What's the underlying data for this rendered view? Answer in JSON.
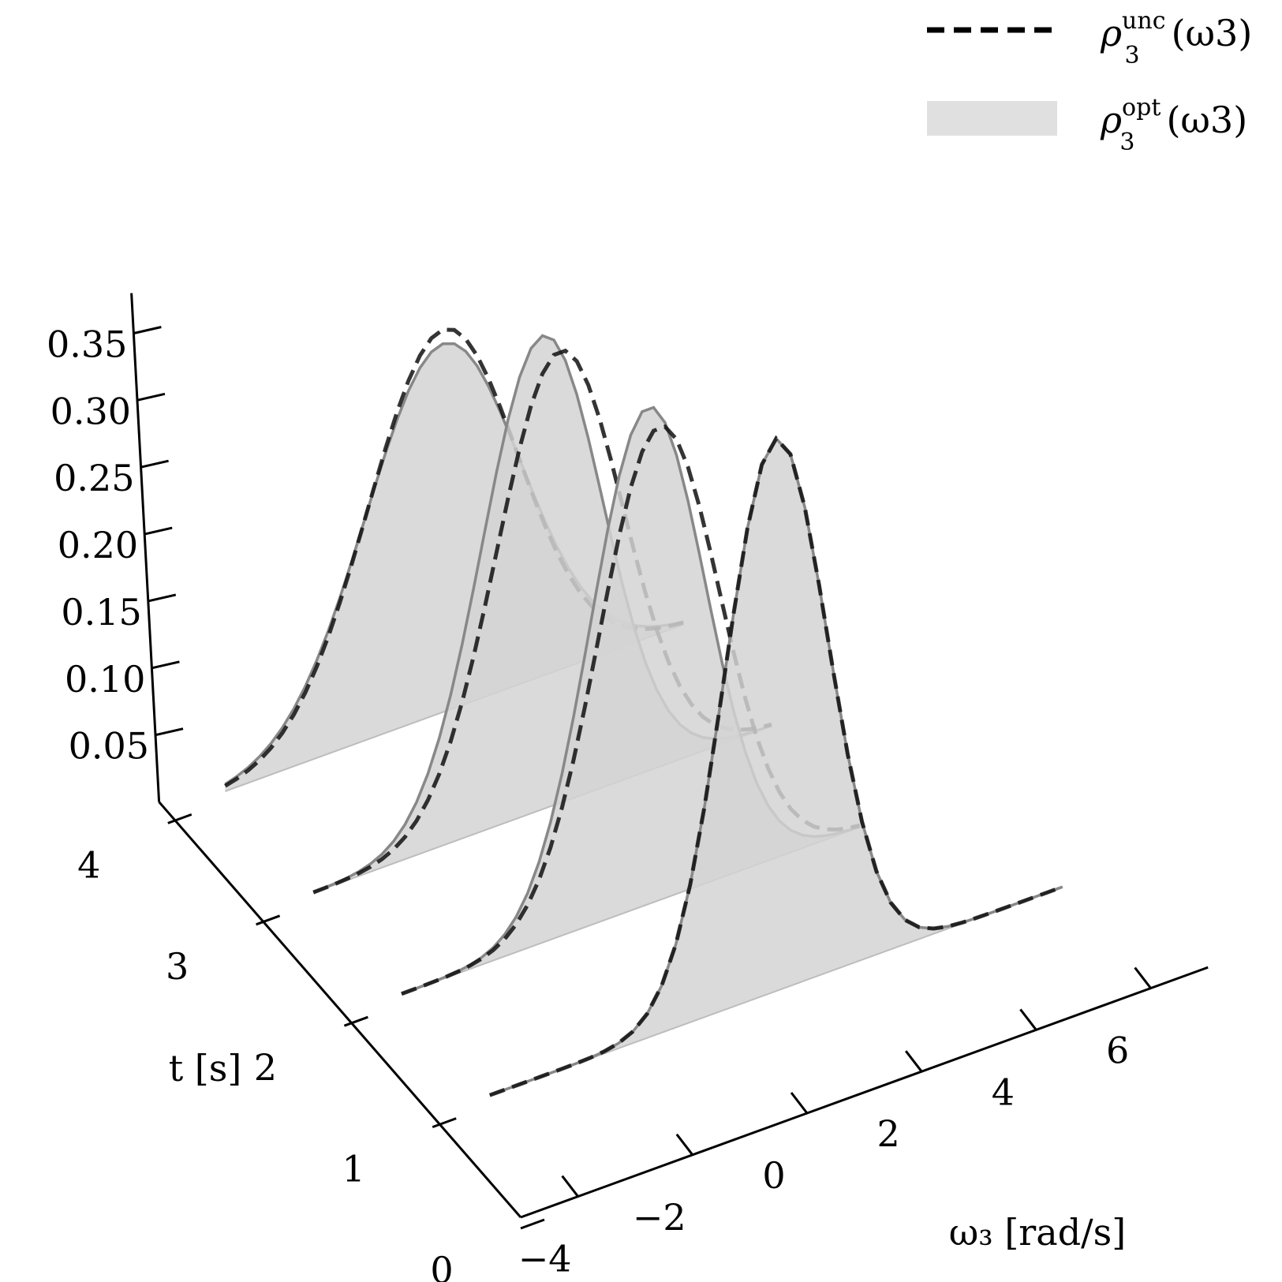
{
  "chart_data": {
    "type": "3d-ridge-density",
    "x_axis": {
      "label": "ω₃ [rad/s]",
      "ticks": [
        -4,
        -2,
        0,
        2,
        4,
        6
      ],
      "tick_labels": [
        "−4",
        "−2",
        "0",
        "2",
        "4",
        "6"
      ],
      "range": [
        -5,
        7
      ]
    },
    "y_axis": {
      "label": "t [s]",
      "ticks": [
        0,
        1,
        2,
        3,
        4
      ],
      "tick_labels": [
        "0",
        "1",
        "2",
        "3",
        "4"
      ],
      "range": [
        0,
        4
      ]
    },
    "z_axis": {
      "label": "",
      "ticks": [
        0.05,
        0.1,
        0.15,
        0.2,
        0.25,
        0.3,
        0.35
      ],
      "tick_labels": [
        "0.05",
        "0.10",
        "0.15",
        "0.20",
        "0.25",
        "0.30",
        "0.35"
      ],
      "range": [
        0,
        0.38
      ]
    },
    "legend": {
      "position": "top-right",
      "entries": [
        {
          "label": "ρ3unc (ω3)",
          "base": "ρ",
          "sub": "3",
          "sup": "unc",
          "arg": "(ω3)",
          "style": "dashed-black"
        },
        {
          "label": "ρ3opt (ω3)",
          "base": "ρ",
          "sub": "3",
          "sup": "opt",
          "arg": "(ω3)",
          "style": "filled-gray"
        }
      ]
    },
    "slices": [
      {
        "t": 1,
        "omega_range": [
          -4,
          6
        ],
        "unc": {
          "mean": 1.0,
          "std": 0.9
        },
        "opt": {
          "mean": 1.0,
          "std": 0.9
        }
      },
      {
        "t": 2,
        "omega_range": [
          -4,
          4
        ],
        "unc": {
          "mean": 0.5,
          "std": 1.05
        },
        "opt": {
          "mean": 0.3,
          "std": 1.0
        }
      },
      {
        "t": 3,
        "omega_range": [
          -4,
          4
        ],
        "unc": {
          "mean": 0.3,
          "std": 1.1
        },
        "opt": {
          "mean": 0.0,
          "std": 1.05
        }
      },
      {
        "t": 4,
        "omega_range": [
          -4,
          4
        ],
        "unc": {
          "mean": -0.2,
          "std": 1.3
        },
        "opt": {
          "mean": -0.2,
          "std": 1.35
        }
      }
    ],
    "colors": {
      "unc_line": "#111111",
      "opt_fill": "#d3d3d3",
      "opt_edge": "#888888",
      "axis": "#000000"
    },
    "grid": false
  }
}
